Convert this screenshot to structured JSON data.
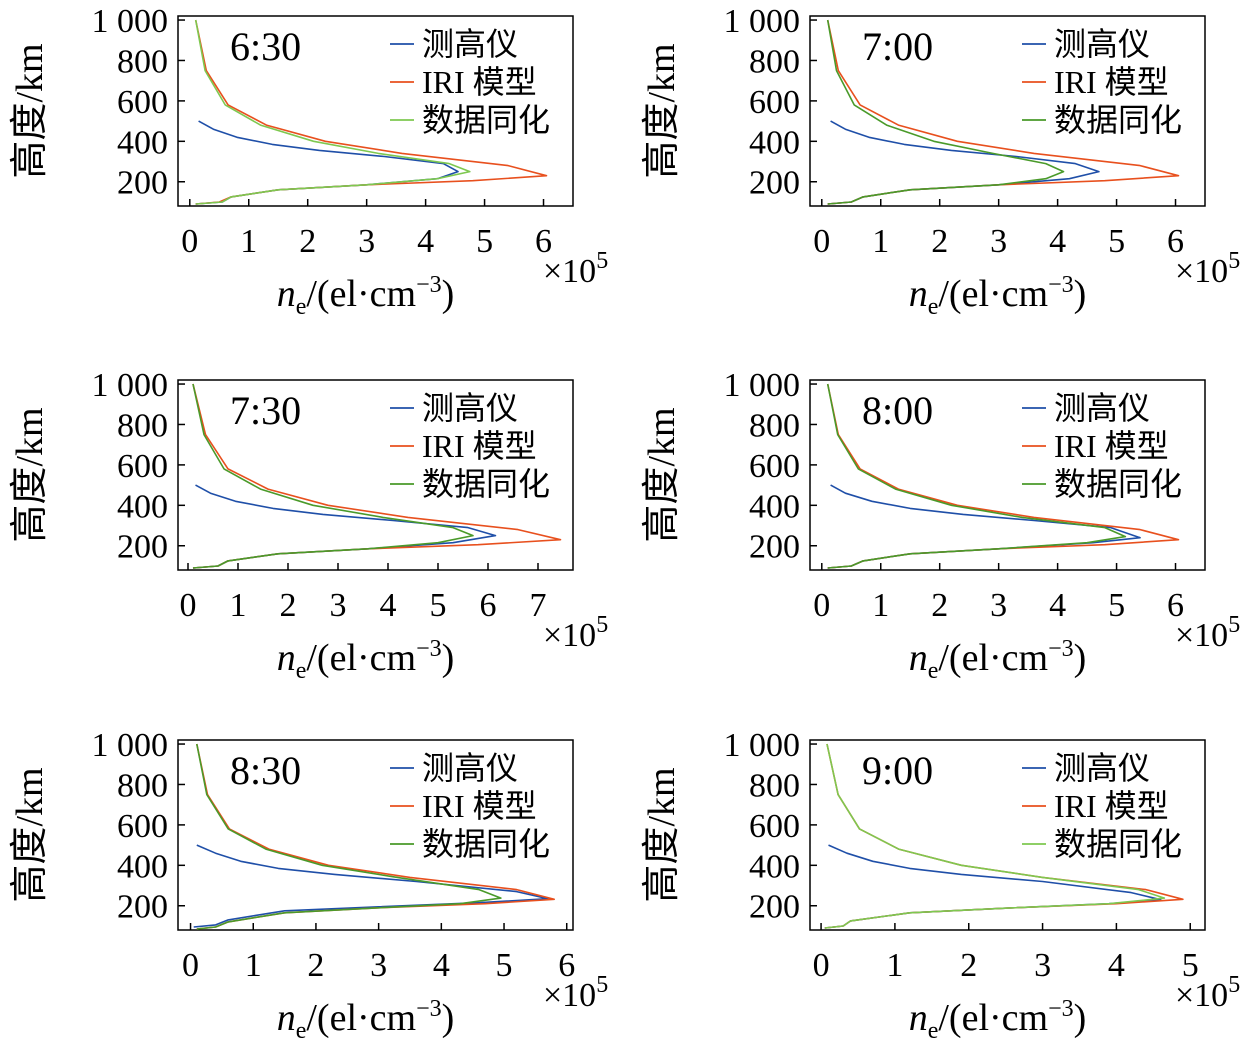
{
  "chart_data": [
    {
      "type": "line",
      "title": "6:30",
      "xlabel": "n",
      "xlabel_sub": "e",
      "xlabel_rest": "/(el·cm",
      "xlabel_sup": "−3",
      "xlabel_end": ")",
      "ylabel": "高度/km",
      "x_multiplier": "×10",
      "x_multiplier_exp": "5",
      "xlim": [
        -0.2,
        6.5
      ],
      "xticks": [
        0,
        1,
        2,
        3,
        4,
        5,
        6
      ],
      "xtick_labels": [
        "0",
        "1",
        "2",
        "3",
        "4",
        "5",
        "6"
      ],
      "ylim": [
        80,
        1020
      ],
      "yticks": [
        200,
        400,
        600,
        800,
        1000
      ],
      "ytick_labels": [
        "200",
        "400",
        "600",
        "800",
        "1 000"
      ],
      "legend_position": "top-right",
      "series": [
        {
          "name": "测高仪",
          "color": "#1f4fa8",
          "x": [
            0.1,
            0.55,
            0.7,
            1.5,
            3,
            4.2,
            4.55,
            4.3,
            3.3,
            2.2,
            1.4,
            0.8,
            0.4,
            0.15
          ],
          "y": [
            90,
            100,
            125,
            160,
            185,
            215,
            250,
            290,
            325,
            355,
            385,
            420,
            460,
            500
          ]
        },
        {
          "name": "IRI 模型",
          "color": "#e8501e",
          "x": [
            0.1,
            0.5,
            0.7,
            1.5,
            3,
            4.8,
            6.05,
            5.4,
            3.6,
            2.3,
            1.3,
            0.65,
            0.28,
            0.1
          ],
          "y": [
            90,
            100,
            125,
            160,
            185,
            205,
            230,
            280,
            340,
            400,
            480,
            580,
            750,
            1000
          ]
        },
        {
          "name": "数据同化",
          "color": "#7ec850",
          "x": [
            0.1,
            0.55,
            0.7,
            1.5,
            3,
            4.2,
            4.75,
            4.4,
            3.2,
            2.1,
            1.2,
            0.6,
            0.26,
            0.1
          ],
          "y": [
            90,
            100,
            125,
            160,
            185,
            215,
            250,
            290,
            340,
            400,
            480,
            580,
            750,
            1000
          ]
        }
      ]
    },
    {
      "type": "line",
      "title": "7:00",
      "xlabel": "n",
      "xlabel_sub": "e",
      "xlabel_rest": "/(el·cm",
      "xlabel_sup": "−3",
      "xlabel_end": ")",
      "ylabel": "高度/km",
      "x_multiplier": "×10",
      "x_multiplier_exp": "5",
      "xlim": [
        -0.2,
        6.5
      ],
      "xticks": [
        0,
        1,
        2,
        3,
        4,
        5,
        6
      ],
      "xtick_labels": [
        "0",
        "1",
        "2",
        "3",
        "4",
        "5",
        "6"
      ],
      "ylim": [
        80,
        1020
      ],
      "yticks": [
        200,
        400,
        600,
        800,
        1000
      ],
      "ytick_labels": [
        "200",
        "400",
        "600",
        "800",
        "1 000"
      ],
      "legend_position": "top-right",
      "series": [
        {
          "name": "测高仪",
          "color": "#1f4fa8",
          "x": [
            0.1,
            0.5,
            0.7,
            1.5,
            3,
            4.2,
            4.7,
            4.3,
            3.3,
            2.2,
            1.4,
            0.8,
            0.4,
            0.15
          ],
          "y": [
            90,
            100,
            125,
            160,
            185,
            215,
            250,
            290,
            325,
            355,
            385,
            420,
            460,
            500
          ]
        },
        {
          "name": "IRI 模型",
          "color": "#e8501e",
          "x": [
            0.1,
            0.5,
            0.7,
            1.5,
            3,
            4.8,
            6.05,
            5.4,
            3.6,
            2.3,
            1.3,
            0.65,
            0.28,
            0.1
          ],
          "y": [
            90,
            100,
            125,
            160,
            185,
            205,
            230,
            280,
            340,
            400,
            480,
            580,
            750,
            1000
          ]
        },
        {
          "name": "数据同化",
          "color": "#4a9a2a",
          "x": [
            0.1,
            0.5,
            0.7,
            1.5,
            3,
            3.8,
            4.1,
            3.8,
            2.9,
            1.9,
            1.1,
            0.55,
            0.25,
            0.1
          ],
          "y": [
            90,
            100,
            125,
            160,
            185,
            215,
            250,
            290,
            340,
            400,
            480,
            580,
            750,
            1000
          ]
        }
      ]
    },
    {
      "type": "line",
      "title": "7:30",
      "xlabel": "n",
      "xlabel_sub": "e",
      "xlabel_rest": "/(el·cm",
      "xlabel_sup": "−3",
      "xlabel_end": ")",
      "ylabel": "高度/km",
      "x_multiplier": "×10",
      "x_multiplier_exp": "5",
      "xlim": [
        -0.2,
        7.7
      ],
      "xticks": [
        0,
        1,
        2,
        3,
        4,
        5,
        6,
        7
      ],
      "xtick_labels": [
        "0",
        "1",
        "2",
        "3",
        "4",
        "5",
        "6",
        "7"
      ],
      "ylim": [
        80,
        1020
      ],
      "yticks": [
        200,
        400,
        600,
        800,
        1000
      ],
      "ytick_labels": [
        "200",
        "400",
        "600",
        "800",
        "1 000"
      ],
      "legend_position": "top-right",
      "series": [
        {
          "name": "测高仪",
          "color": "#1f4fa8",
          "x": [
            0.1,
            0.6,
            0.8,
            1.8,
            3.6,
            5.3,
            6.15,
            5.6,
            4.1,
            2.7,
            1.7,
            0.95,
            0.45,
            0.15
          ],
          "y": [
            90,
            100,
            125,
            160,
            185,
            215,
            250,
            290,
            325,
            355,
            385,
            420,
            460,
            500
          ]
        },
        {
          "name": "IRI 模型",
          "color": "#e8501e",
          "x": [
            0.1,
            0.6,
            0.8,
            1.8,
            3.6,
            5.8,
            7.45,
            6.6,
            4.4,
            2.8,
            1.6,
            0.8,
            0.35,
            0.1
          ],
          "y": [
            90,
            100,
            125,
            160,
            185,
            205,
            230,
            280,
            340,
            400,
            480,
            580,
            750,
            1000
          ]
        },
        {
          "name": "数据同化",
          "color": "#4a9a2a",
          "x": [
            0.1,
            0.6,
            0.8,
            1.8,
            3.6,
            5.0,
            5.7,
            5.3,
            3.9,
            2.5,
            1.45,
            0.72,
            0.32,
            0.1
          ],
          "y": [
            90,
            100,
            125,
            160,
            185,
            215,
            250,
            290,
            340,
            400,
            480,
            580,
            750,
            1000
          ]
        }
      ]
    },
    {
      "type": "line",
      "title": "8:00",
      "xlabel": "n",
      "xlabel_sub": "e",
      "xlabel_rest": "/(el·cm",
      "xlabel_sup": "−3",
      "xlabel_end": ")",
      "ylabel": "高度/km",
      "x_multiplier": "×10",
      "x_multiplier_exp": "5",
      "xlim": [
        -0.2,
        6.5
      ],
      "xticks": [
        0,
        1,
        2,
        3,
        4,
        5,
        6
      ],
      "xtick_labels": [
        "0",
        "1",
        "2",
        "3",
        "4",
        "5",
        "6"
      ],
      "ylim": [
        80,
        1020
      ],
      "yticks": [
        200,
        400,
        600,
        800,
        1000
      ],
      "ytick_labels": [
        "200",
        "400",
        "600",
        "800",
        "1 000"
      ],
      "legend_position": "top-right",
      "series": [
        {
          "name": "测高仪",
          "color": "#1f4fa8",
          "x": [
            0.1,
            0.5,
            0.7,
            1.5,
            3,
            4.6,
            5.4,
            4.9,
            3.6,
            2.4,
            1.5,
            0.85,
            0.4,
            0.15
          ],
          "y": [
            90,
            100,
            125,
            160,
            185,
            215,
            240,
            290,
            325,
            355,
            385,
            420,
            460,
            500
          ]
        },
        {
          "name": "IRI 模型",
          "color": "#e8501e",
          "x": [
            0.1,
            0.5,
            0.7,
            1.5,
            3,
            4.8,
            6.05,
            5.4,
            3.6,
            2.3,
            1.3,
            0.65,
            0.28,
            0.1
          ],
          "y": [
            90,
            100,
            125,
            160,
            185,
            205,
            230,
            280,
            340,
            400,
            480,
            580,
            750,
            1000
          ]
        },
        {
          "name": "数据同化",
          "color": "#4a9a2a",
          "x": [
            0.1,
            0.5,
            0.7,
            1.5,
            3,
            4.5,
            5.15,
            4.8,
            3.4,
            2.2,
            1.25,
            0.62,
            0.27,
            0.1
          ],
          "y": [
            90,
            100,
            125,
            160,
            185,
            215,
            245,
            290,
            340,
            400,
            480,
            580,
            750,
            1000
          ]
        }
      ]
    },
    {
      "type": "line",
      "title": "8:30",
      "xlabel": "n",
      "xlabel_sub": "e",
      "xlabel_rest": "/(el·cm",
      "xlabel_sup": "−3",
      "xlabel_end": ")",
      "ylabel": "高度/km",
      "x_multiplier": "×10",
      "x_multiplier_exp": "5",
      "xlim": [
        -0.2,
        6.1
      ],
      "xticks": [
        0,
        1,
        2,
        3,
        4,
        5,
        6
      ],
      "xtick_labels": [
        "0",
        "1",
        "2",
        "3",
        "4",
        "5",
        "6"
      ],
      "ylim": [
        80,
        1020
      ],
      "yticks": [
        200,
        400,
        600,
        800,
        1000
      ],
      "ytick_labels": [
        "200",
        "400",
        "600",
        "800",
        "1 000"
      ],
      "legend_position": "top-right",
      "series": [
        {
          "name": "测高仪",
          "color": "#1f4fa8",
          "x": [
            0.05,
            0.4,
            0.6,
            1.5,
            3,
            4.6,
            5.7,
            5.2,
            3.6,
            2.3,
            1.4,
            0.8,
            0.4,
            0.1
          ],
          "y": [
            95,
            105,
            130,
            175,
            195,
            215,
            235,
            270,
            320,
            355,
            385,
            420,
            460,
            500
          ]
        },
        {
          "name": "IRI 模型",
          "color": "#e8501e",
          "x": [
            0.1,
            0.4,
            0.6,
            1.5,
            3,
            4.7,
            5.8,
            5.2,
            3.5,
            2.2,
            1.25,
            0.62,
            0.27,
            0.1
          ],
          "y": [
            85,
            95,
            120,
            165,
            190,
            210,
            232,
            280,
            340,
            400,
            480,
            580,
            750,
            1000
          ]
        },
        {
          "name": "数据同化",
          "color": "#4a9a2a",
          "x": [
            0.1,
            0.4,
            0.6,
            1.5,
            3,
            4.3,
            4.95,
            4.6,
            3.3,
            2.1,
            1.2,
            0.6,
            0.26,
            0.1
          ],
          "y": [
            85,
            95,
            120,
            165,
            190,
            210,
            238,
            280,
            340,
            400,
            480,
            580,
            750,
            1000
          ]
        }
      ]
    },
    {
      "type": "line",
      "title": "9:00",
      "xlabel": "n",
      "xlabel_sub": "e",
      "xlabel_rest": "/(el·cm",
      "xlabel_sup": "−3",
      "xlabel_end": ")",
      "ylabel": "高度/km",
      "x_multiplier": "×10",
      "x_multiplier_exp": "5",
      "xlim": [
        -0.15,
        5.2
      ],
      "xticks": [
        0,
        1,
        2,
        3,
        4,
        5
      ],
      "xtick_labels": [
        "0",
        "1",
        "2",
        "3",
        "4",
        "5"
      ],
      "ylim": [
        80,
        1020
      ],
      "yticks": [
        200,
        400,
        600,
        800,
        1000
      ],
      "ytick_labels": [
        "200",
        "400",
        "600",
        "800",
        "1 000"
      ],
      "legend_position": "top-right",
      "series": [
        {
          "name": "测高仪",
          "color": "#1f4fa8",
          "x": [
            0.05,
            0.3,
            0.4,
            1.2,
            2.6,
            3.9,
            4.6,
            4.2,
            3.0,
            1.9,
            1.2,
            0.7,
            0.35,
            0.1
          ],
          "y": [
            90,
            100,
            125,
            165,
            190,
            210,
            230,
            265,
            320,
            355,
            385,
            420,
            460,
            500
          ]
        },
        {
          "name": "IRI 模型",
          "color": "#e8501e",
          "x": [
            0.05,
            0.3,
            0.4,
            1.2,
            2.6,
            4.0,
            4.9,
            4.4,
            3.0,
            1.9,
            1.05,
            0.52,
            0.23,
            0.08
          ],
          "y": [
            90,
            100,
            125,
            165,
            190,
            210,
            232,
            280,
            340,
            400,
            480,
            580,
            750,
            1000
          ]
        },
        {
          "name": "数据同化",
          "color": "#7ec850",
          "x": [
            0.05,
            0.3,
            0.4,
            1.2,
            2.6,
            3.9,
            4.65,
            4.3,
            3.0,
            1.9,
            1.05,
            0.52,
            0.23,
            0.08
          ],
          "y": [
            90,
            100,
            125,
            165,
            190,
            210,
            238,
            280,
            340,
            400,
            480,
            580,
            750,
            1000
          ]
        }
      ]
    }
  ]
}
